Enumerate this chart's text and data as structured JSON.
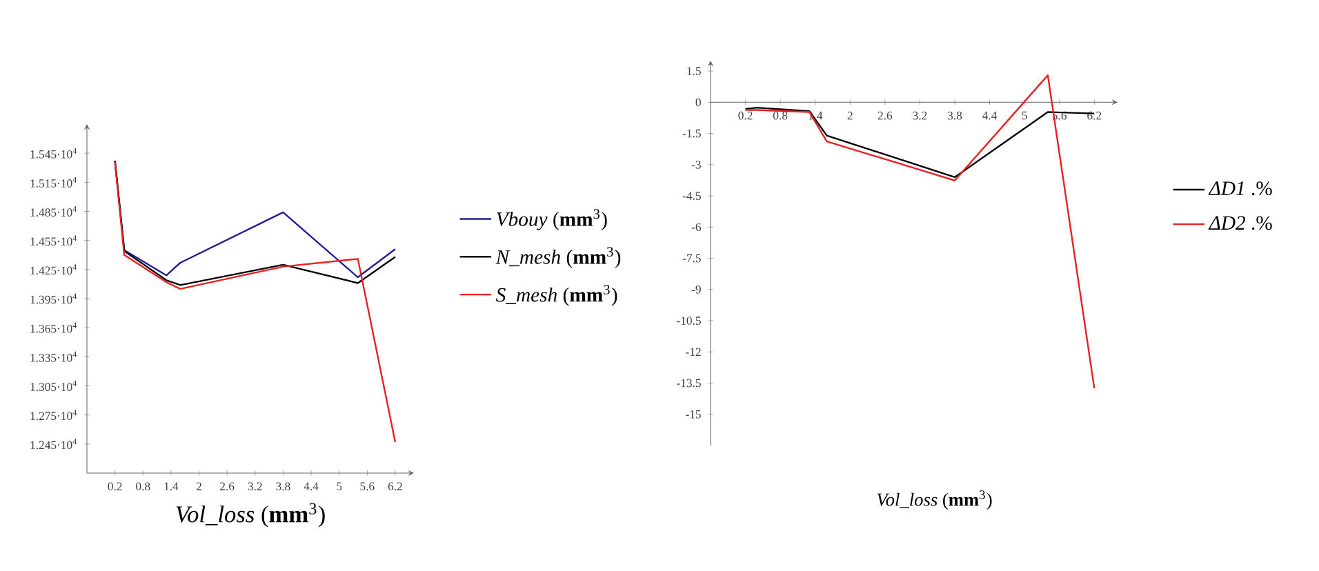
{
  "chart_data": [
    {
      "type": "line",
      "xlabel": "*Vol_loss* (**mm**$^{3}$)",
      "x": [
        0.2,
        0.4,
        1.3,
        1.6,
        3.8,
        5.4,
        6.2
      ],
      "series": [
        {
          "name": "*Vbouy* (**mm**$^{3}$)",
          "color": "#1c1c9c",
          "values": [
            15370,
            14450,
            14190,
            14320,
            14840,
            14170,
            14460
          ]
        },
        {
          "name": "*N_mesh* (**mm**$^{3}$)",
          "color": "#000000",
          "values": [
            15370,
            14440,
            14140,
            14090,
            14300,
            14110,
            14380
          ]
        },
        {
          "name": "*S_mesh* (**mm**$^{3}$)",
          "color": "#e82020",
          "values": [
            15360,
            14400,
            14120,
            14050,
            14280,
            14360,
            12470
          ]
        }
      ],
      "xlim": [
        -0.4,
        6.6
      ],
      "ylim": [
        12150,
        15750
      ],
      "xticks": [
        0.2,
        0.8,
        1.4,
        2,
        2.6,
        3.2,
        3.8,
        4.4,
        5,
        5.6,
        6.2
      ],
      "yticks": [
        {
          "value": 12450,
          "label": "1.245·10$^{4}$"
        },
        {
          "value": 12750,
          "label": "1.275·10$^{4}$"
        },
        {
          "value": 13050,
          "label": "1.305·10$^{4}$"
        },
        {
          "value": 13350,
          "label": "1.335·10$^{4}$"
        },
        {
          "value": 13650,
          "label": "1.365·10$^{4}$"
        },
        {
          "value": 13950,
          "label": "1.395·10$^{4}$"
        },
        {
          "value": 14250,
          "label": "1.425·10$^{4}$"
        },
        {
          "value": 14550,
          "label": "1.455·10$^{4}$"
        },
        {
          "value": 14850,
          "label": "1.485·10$^{4}$"
        },
        {
          "value": 15150,
          "label": "1.515·10$^{4}$"
        },
        {
          "value": 15450,
          "label": "1.545·10$^{4}$"
        }
      ],
      "grid": false,
      "legend": "right",
      "line_style": "solid"
    },
    {
      "type": "line",
      "xlabel": "*Vol_loss* (**mm**$^{3}$)",
      "x": [
        0.2,
        0.4,
        1.3,
        1.6,
        3.8,
        5.4,
        6.2
      ],
      "series": [
        {
          "name": "*ΔD1* .%",
          "color": "#000000",
          "values": [
            -0.32,
            -0.26,
            -0.43,
            -1.6,
            -3.6,
            -0.47,
            -0.54
          ]
        },
        {
          "name": "*ΔD2* .%",
          "color": "#e82020",
          "values": [
            -0.37,
            -0.37,
            -0.47,
            -1.88,
            -3.76,
            1.3,
            -13.75
          ]
        }
      ],
      "xlim": [
        -0.4,
        6.6
      ],
      "ylim": [
        -16.5,
        2
      ],
      "xticks": [
        0.2,
        0.8,
        1.4,
        2,
        2.6,
        3.2,
        3.8,
        4.4,
        5,
        5.6,
        6.2
      ],
      "yticks": [
        1.5,
        0,
        -1.5,
        -3,
        -4.5,
        -6,
        -7.5,
        -9,
        -10.5,
        -12,
        -13.5,
        -15
      ],
      "grid": false,
      "legend": "right",
      "line_style": "solid"
    }
  ]
}
